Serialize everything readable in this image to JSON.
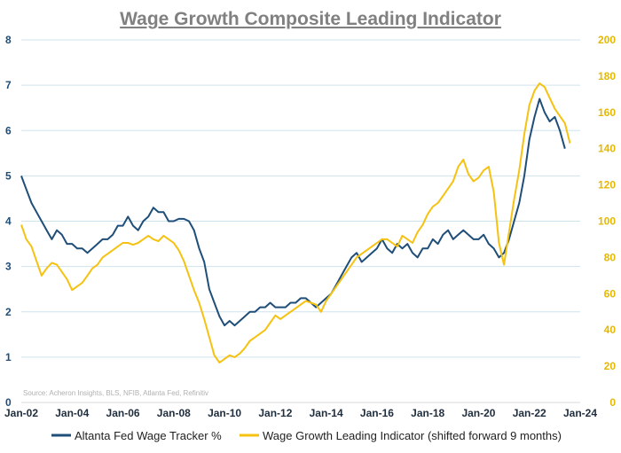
{
  "chart_data": {
    "type": "line",
    "title": "Wage Growth Composite Leading Indicator",
    "source": "Source: Acheron Insights, BLS, NFIB, Atlanta Fed, Refinitiv",
    "x_ticks": [
      "Jan-02",
      "Jan-04",
      "Jan-06",
      "Jan-08",
      "Jan-10",
      "Jan-12",
      "Jan-14",
      "Jan-16",
      "Jan-18",
      "Jan-20",
      "Jan-22",
      "Jan-24"
    ],
    "x_range": [
      2002,
      2024
    ],
    "y_left": {
      "range": [
        0,
        8
      ],
      "ticks": [
        "0",
        "1",
        "2",
        "3",
        "4",
        "5",
        "6",
        "7",
        "8"
      ],
      "color": "#1f4e79"
    },
    "y_right": {
      "range": [
        0,
        200
      ],
      "ticks": [
        "0",
        "20",
        "40",
        "60",
        "80",
        "100",
        "120",
        "140",
        "160",
        "180",
        "200"
      ],
      "color": "#f5c211"
    },
    "grid": true,
    "legend_position": "bottom",
    "series": [
      {
        "name": "Altanta Fed Wage Tracker %",
        "axis": "left",
        "color": "#1f4e79",
        "points": [
          [
            2002.0,
            5.0
          ],
          [
            2002.2,
            4.7
          ],
          [
            2002.4,
            4.4
          ],
          [
            2002.6,
            4.2
          ],
          [
            2002.8,
            4.0
          ],
          [
            2003.0,
            3.8
          ],
          [
            2003.2,
            3.6
          ],
          [
            2003.4,
            3.8
          ],
          [
            2003.6,
            3.7
          ],
          [
            2003.8,
            3.5
          ],
          [
            2004.0,
            3.5
          ],
          [
            2004.2,
            3.4
          ],
          [
            2004.4,
            3.4
          ],
          [
            2004.6,
            3.3
          ],
          [
            2004.8,
            3.4
          ],
          [
            2005.0,
            3.5
          ],
          [
            2005.2,
            3.6
          ],
          [
            2005.4,
            3.6
          ],
          [
            2005.6,
            3.7
          ],
          [
            2005.8,
            3.9
          ],
          [
            2006.0,
            3.9
          ],
          [
            2006.2,
            4.1
          ],
          [
            2006.4,
            3.9
          ],
          [
            2006.6,
            3.8
          ],
          [
            2006.8,
            4.0
          ],
          [
            2007.0,
            4.1
          ],
          [
            2007.2,
            4.3
          ],
          [
            2007.4,
            4.2
          ],
          [
            2007.6,
            4.2
          ],
          [
            2007.8,
            4.0
          ],
          [
            2008.0,
            4.0
          ],
          [
            2008.2,
            4.05
          ],
          [
            2008.4,
            4.05
          ],
          [
            2008.6,
            4.0
          ],
          [
            2008.8,
            3.8
          ],
          [
            2009.0,
            3.4
          ],
          [
            2009.2,
            3.1
          ],
          [
            2009.4,
            2.5
          ],
          [
            2009.6,
            2.2
          ],
          [
            2009.8,
            1.9
          ],
          [
            2010.0,
            1.7
          ],
          [
            2010.2,
            1.8
          ],
          [
            2010.4,
            1.7
          ],
          [
            2010.6,
            1.8
          ],
          [
            2010.8,
            1.9
          ],
          [
            2011.0,
            2.0
          ],
          [
            2011.2,
            2.0
          ],
          [
            2011.4,
            2.1
          ],
          [
            2011.6,
            2.1
          ],
          [
            2011.8,
            2.2
          ],
          [
            2012.0,
            2.1
          ],
          [
            2012.2,
            2.1
          ],
          [
            2012.4,
            2.1
          ],
          [
            2012.6,
            2.2
          ],
          [
            2012.8,
            2.2
          ],
          [
            2013.0,
            2.3
          ],
          [
            2013.2,
            2.3
          ],
          [
            2013.4,
            2.2
          ],
          [
            2013.6,
            2.1
          ],
          [
            2013.8,
            2.2
          ],
          [
            2014.0,
            2.3
          ],
          [
            2014.2,
            2.4
          ],
          [
            2014.4,
            2.6
          ],
          [
            2014.6,
            2.8
          ],
          [
            2014.8,
            3.0
          ],
          [
            2015.0,
            3.2
          ],
          [
            2015.2,
            3.3
          ],
          [
            2015.4,
            3.1
          ],
          [
            2015.6,
            3.2
          ],
          [
            2015.8,
            3.3
          ],
          [
            2016.0,
            3.4
          ],
          [
            2016.2,
            3.6
          ],
          [
            2016.4,
            3.4
          ],
          [
            2016.6,
            3.3
          ],
          [
            2016.8,
            3.5
          ],
          [
            2017.0,
            3.4
          ],
          [
            2017.2,
            3.5
          ],
          [
            2017.4,
            3.3
          ],
          [
            2017.6,
            3.2
          ],
          [
            2017.8,
            3.4
          ],
          [
            2018.0,
            3.4
          ],
          [
            2018.2,
            3.6
          ],
          [
            2018.4,
            3.5
          ],
          [
            2018.6,
            3.7
          ],
          [
            2018.8,
            3.8
          ],
          [
            2019.0,
            3.6
          ],
          [
            2019.2,
            3.7
          ],
          [
            2019.4,
            3.8
          ],
          [
            2019.6,
            3.7
          ],
          [
            2019.8,
            3.6
          ],
          [
            2020.0,
            3.6
          ],
          [
            2020.2,
            3.7
          ],
          [
            2020.4,
            3.5
          ],
          [
            2020.6,
            3.4
          ],
          [
            2020.8,
            3.2
          ],
          [
            2021.0,
            3.3
          ],
          [
            2021.2,
            3.6
          ],
          [
            2021.4,
            4.0
          ],
          [
            2021.6,
            4.4
          ],
          [
            2021.8,
            5.0
          ],
          [
            2022.0,
            5.8
          ],
          [
            2022.2,
            6.3
          ],
          [
            2022.4,
            6.7
          ],
          [
            2022.6,
            6.4
          ],
          [
            2022.8,
            6.2
          ],
          [
            2023.0,
            6.3
          ],
          [
            2023.2,
            6.0
          ],
          [
            2023.4,
            5.6
          ]
        ]
      },
      {
        "name": "Wage Growth Leading Indicator (shifted forward 9 months)",
        "axis": "right",
        "color": "#f5c211",
        "points": [
          [
            2002.0,
            98
          ],
          [
            2002.2,
            90
          ],
          [
            2002.4,
            86
          ],
          [
            2002.6,
            78
          ],
          [
            2002.8,
            70
          ],
          [
            2003.0,
            74
          ],
          [
            2003.2,
            77
          ],
          [
            2003.4,
            76
          ],
          [
            2003.6,
            72
          ],
          [
            2003.8,
            68
          ],
          [
            2004.0,
            62
          ],
          [
            2004.2,
            64
          ],
          [
            2004.4,
            66
          ],
          [
            2004.6,
            70
          ],
          [
            2004.8,
            74
          ],
          [
            2005.0,
            76
          ],
          [
            2005.2,
            80
          ],
          [
            2005.4,
            82
          ],
          [
            2005.6,
            84
          ],
          [
            2005.8,
            86
          ],
          [
            2006.0,
            88
          ],
          [
            2006.2,
            88
          ],
          [
            2006.4,
            87
          ],
          [
            2006.6,
            88
          ],
          [
            2006.8,
            90
          ],
          [
            2007.0,
            92
          ],
          [
            2007.2,
            90
          ],
          [
            2007.4,
            89
          ],
          [
            2007.6,
            92
          ],
          [
            2007.8,
            90
          ],
          [
            2008.0,
            88
          ],
          [
            2008.2,
            84
          ],
          [
            2008.4,
            78
          ],
          [
            2008.6,
            70
          ],
          [
            2008.8,
            62
          ],
          [
            2009.0,
            55
          ],
          [
            2009.2,
            46
          ],
          [
            2009.4,
            36
          ],
          [
            2009.6,
            26
          ],
          [
            2009.8,
            22
          ],
          [
            2010.0,
            24
          ],
          [
            2010.2,
            26
          ],
          [
            2010.4,
            25
          ],
          [
            2010.6,
            27
          ],
          [
            2010.8,
            30
          ],
          [
            2011.0,
            34
          ],
          [
            2011.2,
            36
          ],
          [
            2011.4,
            38
          ],
          [
            2011.6,
            40
          ],
          [
            2011.8,
            44
          ],
          [
            2012.0,
            48
          ],
          [
            2012.2,
            46
          ],
          [
            2012.4,
            48
          ],
          [
            2012.6,
            50
          ],
          [
            2012.8,
            52
          ],
          [
            2013.0,
            54
          ],
          [
            2013.2,
            56
          ],
          [
            2013.4,
            55
          ],
          [
            2013.6,
            54
          ],
          [
            2013.8,
            50
          ],
          [
            2014.0,
            56
          ],
          [
            2014.2,
            60
          ],
          [
            2014.4,
            64
          ],
          [
            2014.6,
            68
          ],
          [
            2014.8,
            72
          ],
          [
            2015.0,
            76
          ],
          [
            2015.2,
            80
          ],
          [
            2015.4,
            82
          ],
          [
            2015.6,
            84
          ],
          [
            2015.8,
            86
          ],
          [
            2016.0,
            88
          ],
          [
            2016.2,
            90
          ],
          [
            2016.4,
            90
          ],
          [
            2016.6,
            88
          ],
          [
            2016.8,
            86
          ],
          [
            2017.0,
            92
          ],
          [
            2017.2,
            90
          ],
          [
            2017.4,
            88
          ],
          [
            2017.6,
            94
          ],
          [
            2017.8,
            98
          ],
          [
            2018.0,
            104
          ],
          [
            2018.2,
            108
          ],
          [
            2018.4,
            110
          ],
          [
            2018.6,
            114
          ],
          [
            2018.8,
            118
          ],
          [
            2019.0,
            122
          ],
          [
            2019.2,
            130
          ],
          [
            2019.4,
            134
          ],
          [
            2019.6,
            126
          ],
          [
            2019.8,
            122
          ],
          [
            2020.0,
            124
          ],
          [
            2020.2,
            128
          ],
          [
            2020.4,
            130
          ],
          [
            2020.6,
            116
          ],
          [
            2020.8,
            88
          ],
          [
            2021.0,
            76
          ],
          [
            2021.2,
            94
          ],
          [
            2021.4,
            112
          ],
          [
            2021.6,
            128
          ],
          [
            2021.8,
            148
          ],
          [
            2022.0,
            164
          ],
          [
            2022.2,
            172
          ],
          [
            2022.4,
            176
          ],
          [
            2022.6,
            174
          ],
          [
            2022.8,
            168
          ],
          [
            2023.0,
            162
          ],
          [
            2023.2,
            158
          ],
          [
            2023.4,
            154
          ],
          [
            2023.6,
            143
          ]
        ]
      }
    ]
  },
  "legend": {
    "left_label": "Altanta Fed Wage Tracker %",
    "right_label": "Wage Growth Leading Indicator (shifted forward 9 months)"
  }
}
